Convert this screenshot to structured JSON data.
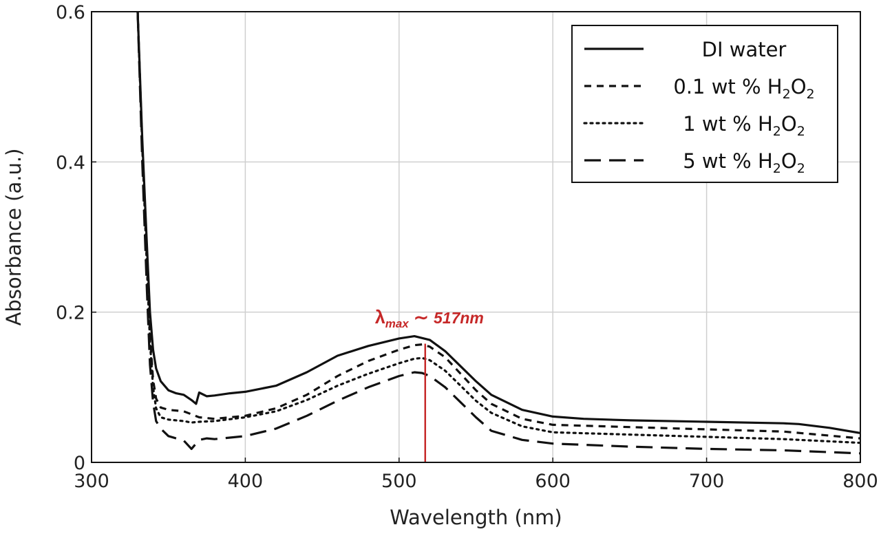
{
  "chart_data": {
    "type": "line",
    "title": "",
    "xlabel": "Wavelength (nm)",
    "ylabel": "Absorbance (a.u.)",
    "xlim": [
      300,
      800
    ],
    "ylim": [
      0,
      0.6
    ],
    "xticks": [
      300,
      400,
      500,
      600,
      700,
      800
    ],
    "xtick_labels": [
      "300",
      "400",
      "500",
      "600",
      "700",
      "800"
    ],
    "yticks": [
      0,
      0.2,
      0.4,
      0.6
    ],
    "ytick_labels": [
      "0",
      "0.2",
      "0.4",
      "0.6"
    ],
    "grid": true,
    "legend_position": "top-right",
    "series": [
      {
        "name": "DI water",
        "legend_parts": [
          "DI water"
        ],
        "dash": "solid",
        "x": [
          330,
          333,
          336,
          338,
          340,
          342,
          345,
          350,
          355,
          360,
          365,
          368,
          370,
          375,
          380,
          390,
          400,
          420,
          440,
          460,
          480,
          500,
          510,
          520,
          530,
          540,
          550,
          560,
          580,
          600,
          620,
          650,
          700,
          750,
          760,
          780,
          800
        ],
        "y": [
          0.6,
          0.43,
          0.29,
          0.2,
          0.15,
          0.125,
          0.108,
          0.096,
          0.092,
          0.09,
          0.083,
          0.078,
          0.093,
          0.088,
          0.089,
          0.092,
          0.094,
          0.102,
          0.12,
          0.142,
          0.155,
          0.165,
          0.168,
          0.163,
          0.148,
          0.128,
          0.108,
          0.09,
          0.07,
          0.061,
          0.058,
          0.056,
          0.054,
          0.052,
          0.051,
          0.046,
          0.039
        ]
      },
      {
        "name": "0.1 wt % H2O2",
        "legend_parts": [
          "0.1 wt % H",
          "2",
          "O",
          "2"
        ],
        "dash": "dashed",
        "x": [
          330,
          333,
          336,
          338,
          340,
          342,
          345,
          350,
          360,
          365,
          370,
          380,
          400,
          420,
          440,
          460,
          480,
          500,
          510,
          515,
          520,
          530,
          540,
          550,
          560,
          580,
          600,
          650,
          700,
          750,
          800
        ],
        "y": [
          0.6,
          0.42,
          0.27,
          0.17,
          0.11,
          0.085,
          0.073,
          0.07,
          0.068,
          0.064,
          0.06,
          0.058,
          0.062,
          0.072,
          0.09,
          0.115,
          0.135,
          0.15,
          0.156,
          0.157,
          0.154,
          0.14,
          0.118,
          0.096,
          0.078,
          0.058,
          0.05,
          0.047,
          0.044,
          0.041,
          0.032
        ]
      },
      {
        "name": "1 wt % H2O2",
        "legend_parts": [
          "1 wt % H",
          "2",
          "O",
          "2"
        ],
        "dash": "dotted",
        "x": [
          330,
          333,
          336,
          338,
          340,
          342,
          345,
          350,
          360,
          365,
          370,
          380,
          400,
          420,
          440,
          460,
          480,
          500,
          510,
          515,
          520,
          530,
          540,
          550,
          560,
          580,
          600,
          650,
          700,
          750,
          800
        ],
        "y": [
          0.6,
          0.42,
          0.26,
          0.16,
          0.1,
          0.072,
          0.06,
          0.057,
          0.055,
          0.053,
          0.054,
          0.055,
          0.06,
          0.068,
          0.083,
          0.102,
          0.118,
          0.132,
          0.138,
          0.139,
          0.136,
          0.122,
          0.102,
          0.082,
          0.066,
          0.048,
          0.04,
          0.037,
          0.034,
          0.031,
          0.026
        ]
      },
      {
        "name": "5 wt % H2O2",
        "legend_parts": [
          "5 wt % H",
          "2",
          "O",
          "2"
        ],
        "dash": "long-dashed",
        "x": [
          330,
          333,
          336,
          338,
          340,
          342,
          345,
          350,
          355,
          360,
          365,
          370,
          375,
          380,
          400,
          420,
          440,
          460,
          480,
          500,
          510,
          515,
          520,
          530,
          540,
          550,
          560,
          580,
          600,
          650,
          700,
          750,
          800
        ],
        "y": [
          0.6,
          0.4,
          0.23,
          0.13,
          0.08,
          0.055,
          0.045,
          0.035,
          0.032,
          0.029,
          0.018,
          0.03,
          0.032,
          0.031,
          0.035,
          0.045,
          0.062,
          0.082,
          0.1,
          0.115,
          0.12,
          0.119,
          0.115,
          0.1,
          0.08,
          0.06,
          0.042,
          0.03,
          0.025,
          0.021,
          0.018,
          0.016,
          0.012
        ]
      }
    ],
    "annotations": [
      {
        "text": "λmax ∼ 517nm",
        "symbol": "λ",
        "subscript": "max",
        "separator": "∼",
        "value_text": "517nm",
        "x": 517,
        "marker": "vertical-line",
        "line_y": [
          0,
          0.158
        ],
        "color": "#c62828"
      }
    ]
  }
}
